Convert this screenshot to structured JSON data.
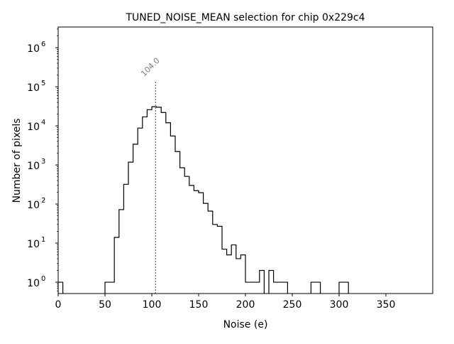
{
  "chart_data": {
    "type": "histogram",
    "title": "TUNED_NOISE_MEAN selection for chip 0x229c4",
    "xlabel": "Noise (e)",
    "ylabel": "Number of pixels",
    "xlim": [
      0,
      400
    ],
    "ylim_log10": [
      -0.29,
      6.53
    ],
    "yscale": "log",
    "bin_width": 5,
    "x_ticks": [
      0,
      50,
      100,
      150,
      200,
      250,
      300,
      350
    ],
    "y_ticks": [
      {
        "exp": 0,
        "label": "0"
      },
      {
        "exp": 1,
        "label": "1"
      },
      {
        "exp": 2,
        "label": "2"
      },
      {
        "exp": 3,
        "label": "3"
      },
      {
        "exp": 4,
        "label": "4"
      },
      {
        "exp": 5,
        "label": "5"
      },
      {
        "exp": 6,
        "label": "6"
      }
    ],
    "y_tick_base": "10",
    "bins": [
      [
        0,
        1
      ],
      [
        5,
        0
      ],
      [
        10,
        0
      ],
      [
        15,
        0
      ],
      [
        20,
        0
      ],
      [
        25,
        0
      ],
      [
        30,
        0
      ],
      [
        35,
        0
      ],
      [
        40,
        0
      ],
      [
        45,
        0
      ],
      [
        50,
        1
      ],
      [
        55,
        1
      ],
      [
        60,
        14
      ],
      [
        65,
        72
      ],
      [
        70,
        320
      ],
      [
        75,
        1180
      ],
      [
        80,
        3400
      ],
      [
        85,
        8800
      ],
      [
        90,
        17000
      ],
      [
        95,
        26000
      ],
      [
        100,
        31000
      ],
      [
        105,
        30000
      ],
      [
        110,
        22000
      ],
      [
        115,
        12000
      ],
      [
        120,
        5500
      ],
      [
        125,
        2200
      ],
      [
        130,
        850
      ],
      [
        135,
        510
      ],
      [
        140,
        300
      ],
      [
        145,
        220
      ],
      [
        150,
        195
      ],
      [
        155,
        104
      ],
      [
        160,
        66
      ],
      [
        165,
        30
      ],
      [
        170,
        27
      ],
      [
        175,
        7
      ],
      [
        180,
        5
      ],
      [
        185,
        9
      ],
      [
        190,
        4
      ],
      [
        195,
        5
      ],
      [
        200,
        1
      ],
      [
        205,
        1
      ],
      [
        210,
        1
      ],
      [
        215,
        2
      ],
      [
        220,
        0
      ],
      [
        225,
        2
      ],
      [
        230,
        1
      ],
      [
        235,
        1
      ],
      [
        240,
        1
      ],
      [
        245,
        0
      ],
      [
        250,
        0
      ],
      [
        255,
        0
      ],
      [
        260,
        0
      ],
      [
        265,
        0
      ],
      [
        270,
        1
      ],
      [
        275,
        1
      ],
      [
        280,
        0
      ],
      [
        285,
        0
      ],
      [
        290,
        0
      ],
      [
        295,
        0
      ],
      [
        300,
        1
      ],
      [
        305,
        1
      ],
      [
        310,
        0
      ]
    ],
    "annotation": {
      "x": 104.0,
      "label": "104.0",
      "line_top_value": 140000,
      "color": "#808080"
    },
    "line_color": "#000000"
  }
}
